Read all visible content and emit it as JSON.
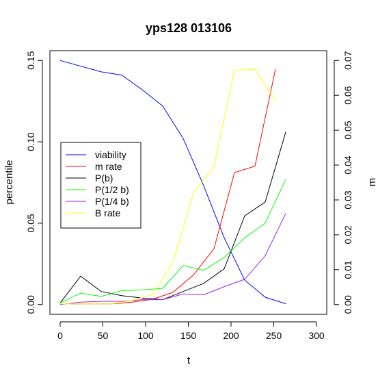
{
  "chart_data": {
    "type": "line",
    "title": "yps128 013106",
    "xlabel": "t",
    "ylabel": "percentile",
    "y2label": "m",
    "xlim": [
      -12,
      312
    ],
    "ylim": [
      -0.006,
      0.156
    ],
    "y2lim": [
      -0.0028,
      0.0728
    ],
    "xticks": [
      "0",
      "50",
      "100",
      "150",
      "200",
      "250",
      "300"
    ],
    "yticks": [
      "0.00",
      "0.05",
      "0.10",
      "0.15"
    ],
    "y2ticks": [
      "0.00",
      "0.01",
      "0.02",
      "0.03",
      "0.04",
      "0.05",
      "0.06",
      "0.07"
    ],
    "legend_position": "left",
    "series": [
      {
        "name": "viability",
        "color": "#0000ff",
        "axis": "left",
        "x": [
          0,
          48,
          72,
          96,
          120,
          144,
          168,
          192,
          216,
          240,
          264
        ],
        "y": [
          0.15,
          0.143,
          0.141,
          0.132,
          0.122,
          0.102,
          0.073,
          0.041,
          0.015,
          0.0045,
          0.0005
        ]
      },
      {
        "name": "m rate",
        "color": "#ff0000",
        "axis": "right",
        "x": [
          12,
          60,
          84,
          108,
          132,
          156,
          180,
          204,
          228,
          252
        ],
        "y": [
          0.0002,
          0.0002,
          0.0007,
          0.0015,
          0.0035,
          0.0085,
          0.016,
          0.0378,
          0.0397,
          0.0675
        ]
      },
      {
        "name": "P(b)",
        "color": "#000000",
        "axis": "left",
        "x": [
          0,
          24,
          48,
          72,
          96,
          120,
          144,
          168,
          192,
          216,
          240,
          264
        ],
        "y": [
          0.001,
          0.0175,
          0.008,
          0.0055,
          0.004,
          0.003,
          0.008,
          0.013,
          0.022,
          0.0545,
          0.063,
          0.106
        ]
      },
      {
        "name": "P(1/2 b)",
        "color": "#00ff00",
        "axis": "left",
        "x": [
          0,
          24,
          48,
          72,
          96,
          120,
          144,
          168,
          192,
          216,
          240,
          264
        ],
        "y": [
          0.001,
          0.007,
          0.005,
          0.0085,
          0.009,
          0.01,
          0.024,
          0.021,
          0.029,
          0.041,
          0.05,
          0.077
        ]
      },
      {
        "name": "P(1/4 b)",
        "color": "#a020f0",
        "axis": "left",
        "x": [
          0,
          24,
          48,
          72,
          96,
          120,
          144,
          168,
          192,
          216,
          240,
          264
        ],
        "y": [
          0.0,
          0.0015,
          0.002,
          0.002,
          0.003,
          0.003,
          0.0065,
          0.006,
          0.011,
          0.0155,
          0.03,
          0.056
        ]
      },
      {
        "name": "B rate",
        "color": "#ffff00",
        "axis": "right",
        "x": [
          0,
          60,
          84,
          108,
          132,
          156,
          180,
          204,
          228,
          252
        ],
        "y": [
          0.0002,
          0.0002,
          0.0012,
          0.0028,
          0.012,
          0.032,
          0.0395,
          0.0672,
          0.0674,
          0.0585
        ]
      }
    ]
  }
}
